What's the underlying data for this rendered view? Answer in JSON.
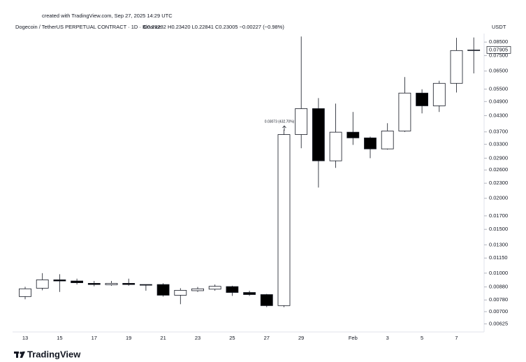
{
  "chart_data": {
    "type": "candlestick",
    "created_note": "created with TradingView.com, Sep 27, 2025 14:29 UTC",
    "title": "Dogecoin / TetherUS PERPETUAL CONTRACT · 1D · Binance",
    "legend_values": "O0.23232 H0.23420 L0.22841 C0.23005 −0.00227 (−0.98%)",
    "y_axis_label": "USDT",
    "annotation": "0.03073 (432.70%) 3,073",
    "brand": "TradingView",
    "log_scale": true,
    "up_color": "#ffffff",
    "down_color": "#000000",
    "categories": [
      "13",
      null,
      "15",
      null,
      "17",
      null,
      "19",
      null,
      "21",
      null,
      "23",
      null,
      "25",
      null,
      "27",
      null,
      "29",
      null,
      null,
      "Feb",
      null,
      "3",
      null,
      "5",
      null,
      "7",
      null
    ],
    "series": {
      "open": [
        0.00805,
        0.0087,
        0.0094,
        0.0093,
        0.0091,
        0.00898,
        0.0091,
        0.009,
        0.009,
        0.00815,
        0.0085,
        0.00862,
        0.00883,
        0.00836,
        0.0082,
        0.0074,
        0.0361,
        0.0459,
        0.0283,
        0.0369,
        0.035,
        0.0316,
        0.0373,
        0.053,
        0.0471,
        0.058,
        0.0786
      ],
      "high": [
        0.00881,
        0.01,
        0.0099,
        0.0095,
        0.0093,
        0.0093,
        0.0095,
        0.009,
        0.0091,
        0.0087,
        0.0088,
        0.009,
        0.0089,
        0.0085,
        0.00825,
        0.0378,
        0.0895,
        0.0506,
        0.0481,
        0.0445,
        0.0354,
        0.0401,
        0.0615,
        0.0549,
        0.0594,
        0.0884,
        0.0887
      ],
      "low": [
        0.00785,
        0.00853,
        0.0084,
        0.009,
        0.00885,
        0.0089,
        0.0089,
        0.0085,
        0.00805,
        0.0075,
        0.0084,
        0.0085,
        0.0081,
        0.0081,
        0.0073,
        0.0073,
        0.0318,
        0.0221,
        0.0265,
        0.0328,
        0.029,
        0.0314,
        0.037,
        0.0439,
        0.0445,
        0.0533,
        0.0636
      ],
      "close": [
        0.00865,
        0.0094,
        0.0093,
        0.00915,
        0.009,
        0.0091,
        0.009,
        0.00895,
        0.00815,
        0.00853,
        0.00865,
        0.00885,
        0.00836,
        0.0082,
        0.0074,
        0.0361,
        0.0459,
        0.0283,
        0.0369,
        0.035,
        0.0316,
        0.0373,
        0.053,
        0.0471,
        0.058,
        0.0786,
        0.07905
      ]
    },
    "last_price": 0.07905,
    "ylim": [
      0.0058,
      0.092
    ],
    "yticks": [
      {
        "value": 0.085,
        "label": "0.08500"
      },
      {
        "value": 0.075,
        "label": "0.07500"
      },
      {
        "value": 0.065,
        "label": "0.06500"
      },
      {
        "value": 0.055,
        "label": "0.05500"
      },
      {
        "value": 0.049,
        "label": "0.04900"
      },
      {
        "value": 0.043,
        "label": "0.04300"
      },
      {
        "value": 0.037,
        "label": "0.03700"
      },
      {
        "value": 0.033,
        "label": "0.03300"
      },
      {
        "value": 0.029,
        "label": "0.02900"
      },
      {
        "value": 0.026,
        "label": "0.02600"
      },
      {
        "value": 0.023,
        "label": "0.02300"
      },
      {
        "value": 0.02,
        "label": "0.02000"
      },
      {
        "value": 0.017,
        "label": "0.01700"
      },
      {
        "value": 0.015,
        "label": "0.01500"
      },
      {
        "value": 0.013,
        "label": "0.01300"
      },
      {
        "value": 0.0115,
        "label": "0.01150"
      },
      {
        "value": 0.01,
        "label": "0.01000"
      },
      {
        "value": 0.0088,
        "label": "0.00880"
      },
      {
        "value": 0.0078,
        "label": "0.00780"
      },
      {
        "value": 0.007,
        "label": "0.00700"
      },
      {
        "value": 0.00625,
        "label": "0.00625"
      }
    ]
  }
}
